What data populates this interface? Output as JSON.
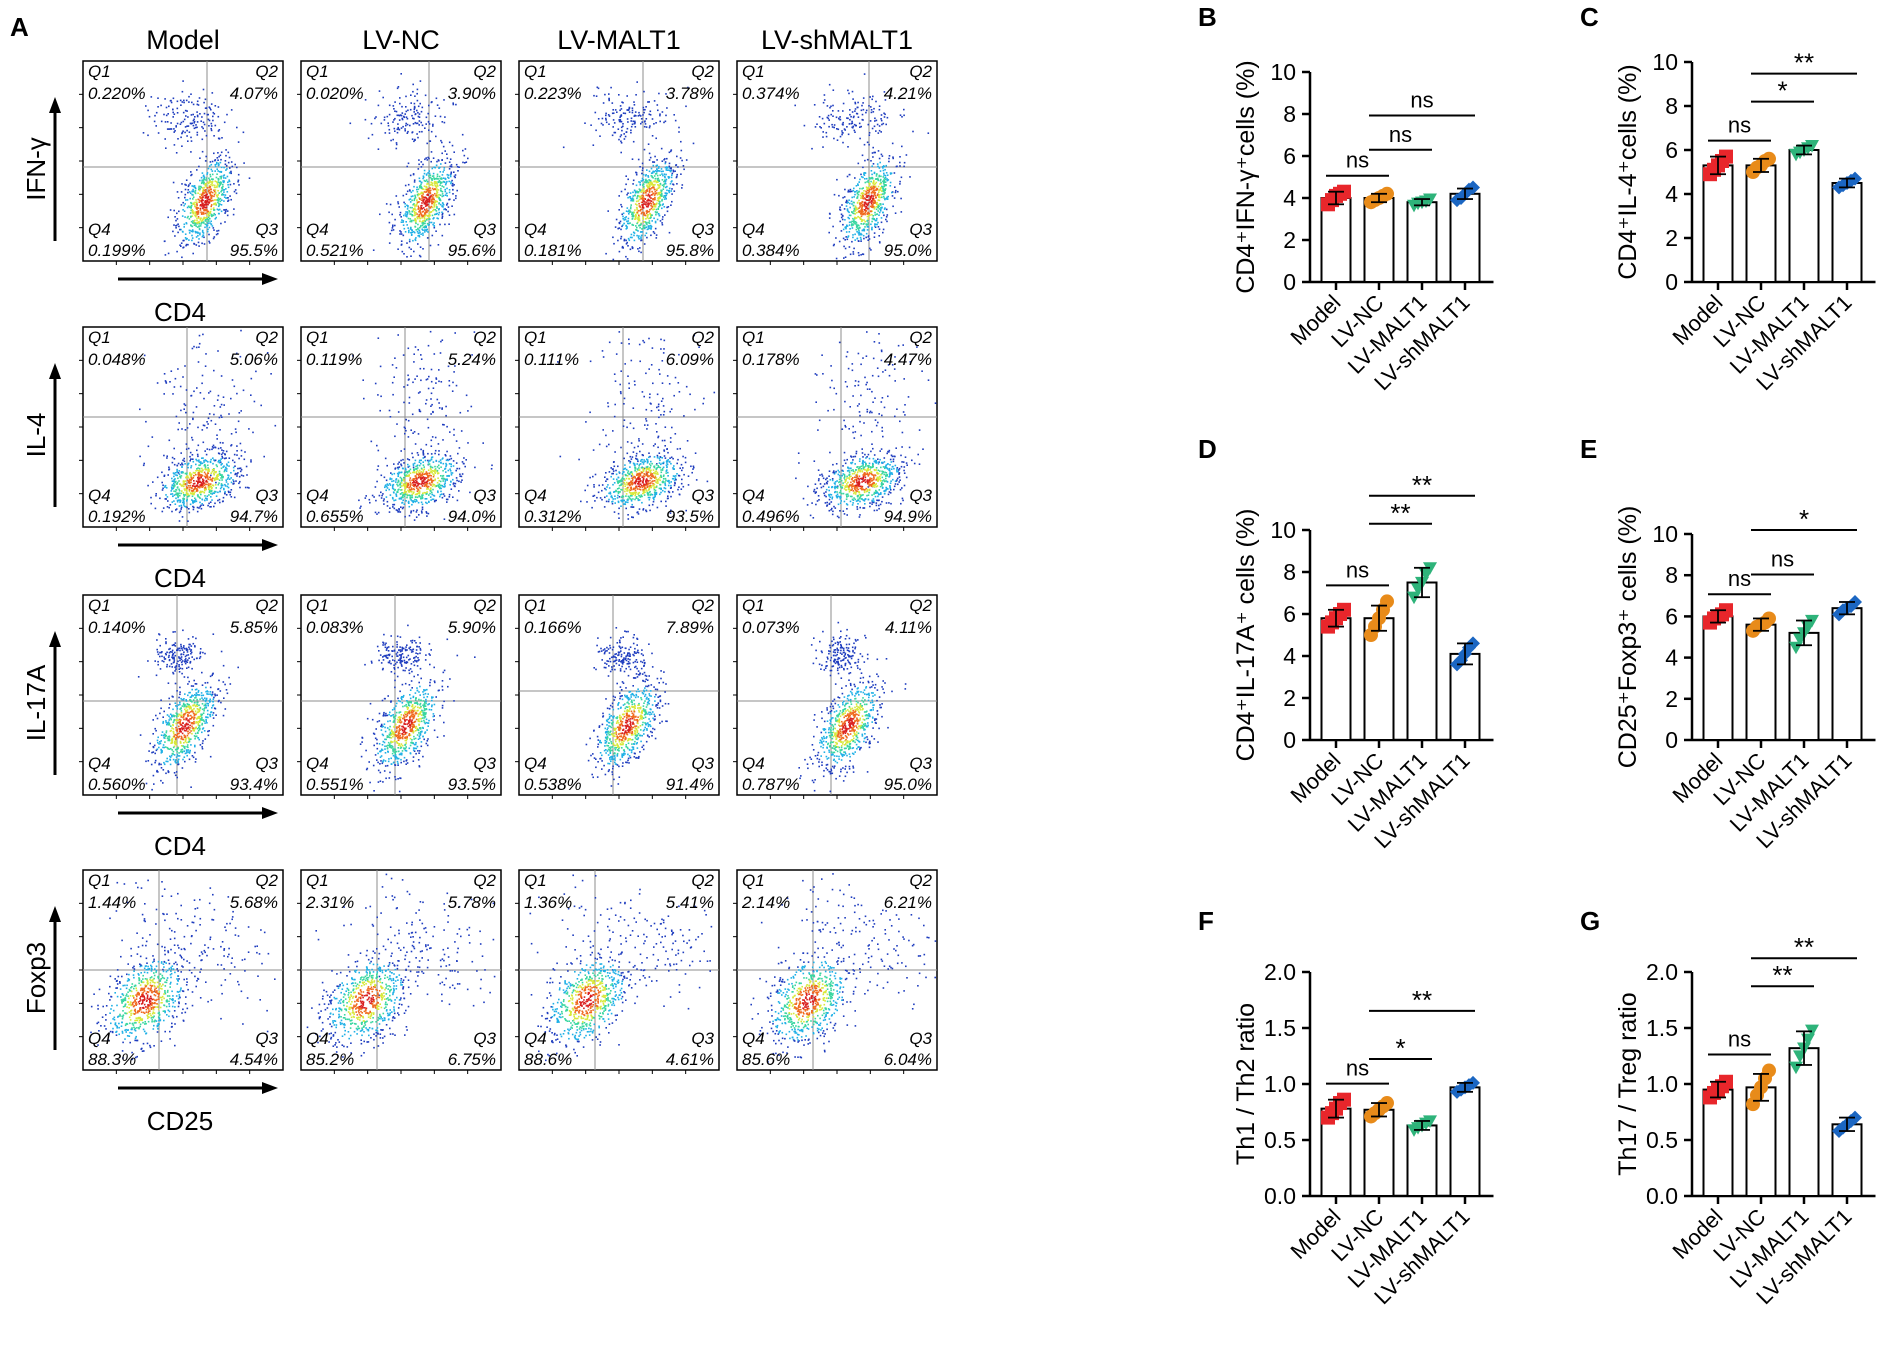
{
  "colors": {
    "axis": "#000000",
    "gate": "#8c8c8c",
    "Model": "#e8262b",
    "LV-NC": "#e88b1a",
    "LV-MALT1": "#2eb37a",
    "LV-shMALT1": "#1b66c2",
    "density_scale": [
      "#1f3dbf",
      "#1fb0e6",
      "#38d6a0",
      "#d8e83a",
      "#f06a1e",
      "#d91f1f"
    ]
  },
  "panel_a": {
    "label": "A",
    "columns": [
      "Model",
      "LV-NC",
      "LV-MALT1",
      "LV-shMALT1"
    ],
    "rows": [
      {
        "y_marker": "IFN-γ",
        "x_marker": "CD4",
        "plots": [
          {
            "q1": "0.220%",
            "q2": "4.07%",
            "q3": "95.5%",
            "q4": "0.199%"
          },
          {
            "q1": "0.020%",
            "q2": "3.90%",
            "q3": "95.6%",
            "q4": "0.521%"
          },
          {
            "q1": "0.223%",
            "q2": "3.78%",
            "q3": "95.8%",
            "q4": "0.181%"
          },
          {
            "q1": "0.374%",
            "q2": "4.21%",
            "q3": "95.0%",
            "q4": "0.384%"
          }
        ]
      },
      {
        "y_marker": "IL-4",
        "x_marker": "CD4",
        "plots": [
          {
            "q1": "0.048%",
            "q2": "5.06%",
            "q3": "94.7%",
            "q4": "0.192%"
          },
          {
            "q1": "0.119%",
            "q2": "5.24%",
            "q3": "94.0%",
            "q4": "0.655%"
          },
          {
            "q1": "0.111%",
            "q2": "6.09%",
            "q3": "93.5%",
            "q4": "0.312%"
          },
          {
            "q1": "0.178%",
            "q2": "4.47%",
            "q3": "94.9%",
            "q4": "0.496%"
          }
        ]
      },
      {
        "y_marker": "IL-17A",
        "x_marker": "CD4",
        "plots": [
          {
            "q1": "0.140%",
            "q2": "5.85%",
            "q3": "93.4%",
            "q4": "0.560%"
          },
          {
            "q1": "0.083%",
            "q2": "5.90%",
            "q3": "93.5%",
            "q4": "0.551%"
          },
          {
            "q1": "0.166%",
            "q2": "7.89%",
            "q3": "91.4%",
            "q4": "0.538%"
          },
          {
            "q1": "0.073%",
            "q2": "4.11%",
            "q3": "95.0%",
            "q4": "0.787%"
          }
        ]
      },
      {
        "y_marker": "Foxp3",
        "x_marker": "CD25",
        "plots": [
          {
            "q1": "1.44%",
            "q2": "5.68%",
            "q3": "4.54%",
            "q4": "88.3%"
          },
          {
            "q1": "2.31%",
            "q2": "5.78%",
            "q3": "6.75%",
            "q4": "85.2%"
          },
          {
            "q1": "1.36%",
            "q2": "5.41%",
            "q3": "4.61%",
            "q4": "88.6%"
          },
          {
            "q1": "2.14%",
            "q2": "6.21%",
            "q3": "6.04%",
            "q4": "85.6%"
          }
        ]
      }
    ]
  },
  "chart_data": [
    {
      "panel": "B",
      "type": "bar",
      "ylabel": "CD4⁺IFN-γ⁺cells (%)",
      "ylim": [
        0,
        10
      ],
      "yticks": [
        0,
        2,
        4,
        6,
        8,
        10
      ],
      "ytick_labels": [
        "0",
        "2",
        "4",
        "6",
        "8",
        "10"
      ],
      "categories": [
        "Model",
        "LV-NC",
        "LV-MALT1",
        "LV-shMALT1"
      ],
      "values": [
        4.0,
        4.0,
        3.8,
        4.2
      ],
      "errors": [
        0.3,
        0.2,
        0.15,
        0.25
      ],
      "points": [
        [
          3.7,
          3.9,
          4.1,
          4.2,
          4.3
        ],
        [
          3.8,
          3.9,
          4.0,
          4.1,
          4.2
        ],
        [
          3.65,
          3.75,
          3.8,
          3.85,
          3.95
        ],
        [
          3.9,
          4.0,
          4.2,
          4.4,
          4.5
        ]
      ],
      "brackets": [
        {
          "from": 0,
          "to": 1,
          "label": "ns",
          "level": 0
        },
        {
          "from": 1,
          "to": 2,
          "label": "ns",
          "level": 1
        },
        {
          "from": 1,
          "to": 3,
          "label": "ns",
          "level": 2
        }
      ]
    },
    {
      "panel": "C",
      "type": "bar",
      "ylabel": "CD4⁺IL-4⁺cells (%)",
      "ylim": [
        0,
        10
      ],
      "yticks": [
        0,
        2,
        4,
        6,
        8,
        10
      ],
      "ytick_labels": [
        "0",
        "2",
        "4",
        "6",
        "8",
        "10"
      ],
      "categories": [
        "Model",
        "LV-NC",
        "LV-MALT1",
        "LV-shMALT1"
      ],
      "values": [
        5.3,
        5.3,
        6.0,
        4.5
      ],
      "errors": [
        0.4,
        0.3,
        0.2,
        0.2
      ],
      "points": [
        [
          4.9,
          5.1,
          5.3,
          5.5,
          5.7
        ],
        [
          5.0,
          5.2,
          5.3,
          5.5,
          5.6
        ],
        [
          5.8,
          5.9,
          6.0,
          6.1,
          6.2
        ],
        [
          4.3,
          4.4,
          4.5,
          4.6,
          4.7
        ]
      ],
      "brackets": [
        {
          "from": 0,
          "to": 1,
          "label": "ns",
          "level": 0
        },
        {
          "from": 1,
          "to": 2,
          "label": "*",
          "level": 1
        },
        {
          "from": 1,
          "to": 3,
          "label": "**",
          "level": 2
        }
      ]
    },
    {
      "panel": "D",
      "type": "bar",
      "ylabel": "CD4⁺IL-17A⁺ cells (%)",
      "ylim": [
        0,
        10
      ],
      "yticks": [
        0,
        2,
        4,
        6,
        8,
        10
      ],
      "ytick_labels": [
        "0",
        "2",
        "4",
        "6",
        "8",
        "10"
      ],
      "categories": [
        "Model",
        "LV-NC",
        "LV-MALT1",
        "LV-shMALT1"
      ],
      "values": [
        5.8,
        5.8,
        7.5,
        4.1
      ],
      "errors": [
        0.4,
        0.6,
        0.7,
        0.5
      ],
      "points": [
        [
          5.4,
          5.6,
          5.8,
          6.0,
          6.2
        ],
        [
          5.0,
          5.4,
          5.8,
          6.2,
          6.6
        ],
        [
          6.8,
          7.2,
          7.5,
          7.9,
          8.2
        ],
        [
          3.6,
          3.8,
          4.1,
          4.4,
          4.6
        ]
      ],
      "brackets": [
        {
          "from": 0,
          "to": 1,
          "label": "ns",
          "level": 0
        },
        {
          "from": 1,
          "to": 2,
          "label": "**",
          "level": 1
        },
        {
          "from": 1,
          "to": 3,
          "label": "**",
          "level": 2
        }
      ]
    },
    {
      "panel": "E",
      "type": "bar",
      "ylabel": "CD25⁺Foxp3⁺ cells (%)",
      "ylim": [
        0,
        10
      ],
      "yticks": [
        0,
        2,
        4,
        6,
        8,
        10
      ],
      "ytick_labels": [
        "0",
        "2",
        "4",
        "6",
        "8",
        "10"
      ],
      "categories": [
        "Model",
        "LV-NC",
        "LV-MALT1",
        "LV-shMALT1"
      ],
      "values": [
        6.0,
        5.6,
        5.2,
        6.4
      ],
      "errors": [
        0.3,
        0.3,
        0.6,
        0.3
      ],
      "points": [
        [
          5.7,
          5.9,
          6.0,
          6.1,
          6.3
        ],
        [
          5.3,
          5.5,
          5.6,
          5.7,
          5.9
        ],
        [
          4.5,
          4.9,
          5.2,
          5.5,
          5.8
        ],
        [
          6.1,
          6.3,
          6.4,
          6.5,
          6.7
        ]
      ],
      "brackets": [
        {
          "from": 0,
          "to": 1,
          "label": "ns",
          "level": 0
        },
        {
          "from": 1,
          "to": 2,
          "label": "ns",
          "level": 1
        },
        {
          "from": 1,
          "to": 3,
          "label": "*",
          "level": 2
        }
      ]
    },
    {
      "panel": "F",
      "type": "bar",
      "ylabel": "Th1 / Th2 ratio",
      "ylim": [
        0,
        2
      ],
      "yticks": [
        0,
        0.5,
        1,
        1.5,
        2
      ],
      "ytick_labels": [
        "0.0",
        "0.5",
        "1.0",
        "1.5",
        "2.0"
      ],
      "categories": [
        "Model",
        "LV-NC",
        "LV-MALT1",
        "LV-shMALT1"
      ],
      "values": [
        0.78,
        0.77,
        0.63,
        0.97
      ],
      "errors": [
        0.08,
        0.06,
        0.04,
        0.04
      ],
      "points": [
        [
          0.7,
          0.74,
          0.78,
          0.83,
          0.86
        ],
        [
          0.71,
          0.74,
          0.77,
          0.8,
          0.83
        ],
        [
          0.59,
          0.61,
          0.63,
          0.65,
          0.67
        ],
        [
          0.93,
          0.95,
          0.97,
          0.99,
          1.01
        ]
      ],
      "brackets": [
        {
          "from": 0,
          "to": 1,
          "label": "ns",
          "level": 0
        },
        {
          "from": 1,
          "to": 2,
          "label": "*",
          "level": 1
        },
        {
          "from": 1,
          "to": 3,
          "label": "**",
          "level": 2
        }
      ]
    },
    {
      "panel": "G",
      "type": "bar",
      "ylabel": "Th17 / Treg ratio",
      "ylim": [
        0,
        2
      ],
      "yticks": [
        0,
        0.5,
        1,
        1.5,
        2
      ],
      "ytick_labels": [
        "0.0",
        "0.5",
        "1.0",
        "1.5",
        "2.0"
      ],
      "categories": [
        "Model",
        "LV-NC",
        "LV-MALT1",
        "LV-shMALT1"
      ],
      "values": [
        0.95,
        0.97,
        1.32,
        0.64
      ],
      "errors": [
        0.07,
        0.12,
        0.15,
        0.06
      ],
      "points": [
        [
          0.88,
          0.92,
          0.95,
          0.98,
          1.02
        ],
        [
          0.82,
          0.9,
          0.97,
          1.05,
          1.12
        ],
        [
          1.15,
          1.25,
          1.32,
          1.4,
          1.48
        ],
        [
          0.58,
          0.61,
          0.64,
          0.67,
          0.7
        ]
      ],
      "brackets": [
        {
          "from": 0,
          "to": 1,
          "label": "ns",
          "level": 0
        },
        {
          "from": 1,
          "to": 2,
          "label": "**",
          "level": 1
        },
        {
          "from": 1,
          "to": 3,
          "label": "**",
          "level": 2
        }
      ]
    }
  ]
}
